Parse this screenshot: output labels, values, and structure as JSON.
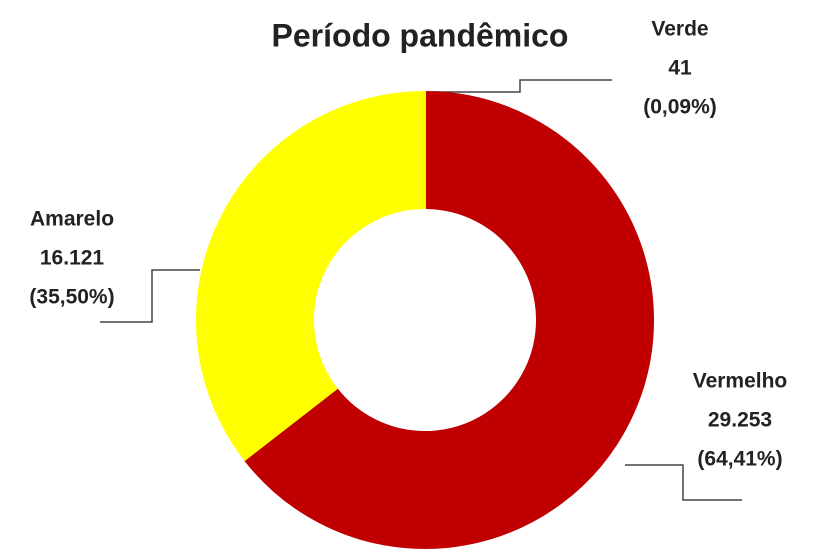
{
  "chart_data": {
    "type": "donut",
    "title": "Período pandêmico",
    "categories": [
      "Verde",
      "Vermelho",
      "Amarelo"
    ],
    "values": [
      41,
      29253,
      16121
    ],
    "value_labels": [
      "41",
      "29.253",
      "16.121"
    ],
    "percent_labels": [
      "(0,09%)",
      "(64,41%)",
      "(35,50%)"
    ],
    "colors": [
      "#8fab4f",
      "#c00000",
      "#ffff00"
    ]
  }
}
